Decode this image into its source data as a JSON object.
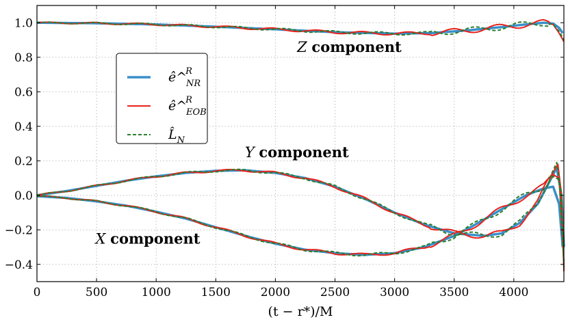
{
  "chart_data": {
    "type": "line",
    "xlabel": "(t − r*)/M",
    "ylabel": "",
    "xlim": [
      0,
      4420
    ],
    "ylim": [
      -0.5,
      1.1
    ],
    "xticks": [
      0,
      500,
      1000,
      1500,
      2000,
      2500,
      3000,
      3500,
      4000
    ],
    "xtick_labels": [
      "0",
      "500",
      "1000",
      "1500",
      "2000",
      "2500",
      "3000",
      "3500",
      "4000"
    ],
    "yticks": [
      -0.4,
      -0.2,
      0.0,
      0.2,
      0.4,
      0.6,
      0.8,
      1.0
    ],
    "ytick_labels": [
      "−0.4",
      "−0.2",
      "0.0",
      "0.2",
      "0.4",
      "0.6",
      "0.8",
      "1.0"
    ],
    "grid": true,
    "legend_position": "upper-left",
    "annotations": [
      {
        "text": "Z component",
        "x": 2620,
        "y": 0.83
      },
      {
        "text": "Y component",
        "x": 2180,
        "y": 0.22
      },
      {
        "text": "X component",
        "x": 930,
        "y": -0.28
      }
    ],
    "series": [
      {
        "name": "ê^R_NR",
        "legend_sup": "R",
        "legend_sub": "NR",
        "color": "#3a8fc9",
        "style": "solid",
        "width": 3.5,
        "components": {
          "Z": {
            "x": [
              0,
              500,
              1000,
              1500,
              2000,
              2500,
              3000,
              3300,
              3600,
              3900,
              4100,
              4250,
              4330,
              4380,
              4410
            ],
            "y": [
              1.0,
              0.997,
              0.99,
              0.977,
              0.962,
              0.945,
              0.937,
              0.94,
              0.955,
              0.975,
              0.99,
              1.0,
              0.995,
              0.97,
              0.94
            ]
          },
          "Y": {
            "x": [
              0,
              250,
              500,
              750,
              1000,
              1250,
              1500,
              1750,
              2000,
              2250,
              2500,
              2750,
              3000,
              3250,
              3500,
              3750,
              3900,
              4050,
              4200,
              4300,
              4360,
              4400,
              4420
            ],
            "y": [
              0.0,
              0.025,
              0.055,
              0.085,
              0.11,
              0.13,
              0.142,
              0.145,
              0.13,
              0.1,
              0.05,
              -0.02,
              -0.1,
              -0.17,
              -0.22,
              -0.235,
              -0.22,
              -0.16,
              -0.05,
              0.08,
              0.16,
              0.0,
              -0.3
            ]
          },
          "X": {
            "x": [
              0,
              250,
              500,
              750,
              1000,
              1250,
              1500,
              1750,
              2000,
              2250,
              2500,
              2750,
              3000,
              3250,
              3500,
              3650,
              3800,
              3950,
              4100,
              4250,
              4330,
              4380,
              4410
            ],
            "y": [
              -0.005,
              -0.015,
              -0.035,
              -0.06,
              -0.095,
              -0.135,
              -0.185,
              -0.235,
              -0.28,
              -0.315,
              -0.335,
              -0.345,
              -0.335,
              -0.3,
              -0.235,
              -0.18,
              -0.12,
              -0.06,
              0.0,
              0.04,
              0.05,
              -0.05,
              -0.3
            ]
          }
        }
      },
      {
        "name": "ê^R_EOB",
        "legend_sup": "R",
        "legend_sub": "EOB",
        "color": "#e8221c",
        "style": "solid",
        "width": 2,
        "components": {
          "Z": {
            "x": [
              0,
              500,
              1000,
              1500,
              2000,
              2500,
              3000,
              3300,
              3600,
              3900,
              4100,
              4250,
              4330,
              4380,
              4420
            ],
            "y": [
              1.0,
              0.997,
              0.99,
              0.977,
              0.962,
              0.945,
              0.937,
              0.94,
              0.955,
              0.975,
              0.99,
              1.0,
              0.99,
              0.94,
              0.89
            ]
          },
          "Y": {
            "x": [
              0,
              250,
              500,
              750,
              1000,
              1250,
              1500,
              1750,
              2000,
              2250,
              2500,
              2750,
              3000,
              3250,
              3500,
              3750,
              3900,
              4050,
              4200,
              4300,
              4370,
              4400,
              4420
            ],
            "y": [
              0.0,
              0.025,
              0.055,
              0.085,
              0.11,
              0.13,
              0.142,
              0.145,
              0.13,
              0.1,
              0.05,
              -0.02,
              -0.1,
              -0.17,
              -0.22,
              -0.235,
              -0.22,
              -0.16,
              -0.04,
              0.1,
              0.18,
              0.0,
              -0.44
            ]
          },
          "X": {
            "x": [
              0,
              250,
              500,
              750,
              1000,
              1250,
              1500,
              1750,
              2000,
              2250,
              2500,
              2750,
              3000,
              3250,
              3500,
              3650,
              3800,
              3950,
              4100,
              4250,
              4330,
              4380,
              4420
            ],
            "y": [
              -0.005,
              -0.015,
              -0.035,
              -0.06,
              -0.095,
              -0.135,
              -0.185,
              -0.235,
              -0.28,
              -0.315,
              -0.335,
              -0.345,
              -0.335,
              -0.3,
              -0.235,
              -0.18,
              -0.12,
              -0.06,
              0.0,
              0.05,
              0.12,
              0.1,
              -0.4
            ]
          }
        }
      },
      {
        "name": "L̂_N",
        "legend_sup": "",
        "legend_sub": "N",
        "color": "#2a7d2a",
        "style": "dashed",
        "width": 2,
        "components": {
          "Z": {
            "x": [
              0,
              500,
              1000,
              1500,
              2000,
              2500,
              3000,
              3300,
              3600,
              3900,
              4100,
              4250,
              4330,
              4380,
              4420
            ],
            "y": [
              1.0,
              0.997,
              0.99,
              0.977,
              0.962,
              0.945,
              0.937,
              0.94,
              0.955,
              0.975,
              0.99,
              1.0,
              0.99,
              0.95,
              0.9
            ]
          },
          "Y": {
            "x": [
              0,
              250,
              500,
              750,
              1000,
              1250,
              1500,
              1750,
              2000,
              2250,
              2500,
              2750,
              3000,
              3250,
              3500,
              3750,
              3900,
              4050,
              4200,
              4300,
              4360,
              4400,
              4420
            ],
            "y": [
              0.0,
              0.025,
              0.055,
              0.085,
              0.11,
              0.13,
              0.142,
              0.145,
              0.13,
              0.1,
              0.05,
              -0.02,
              -0.1,
              -0.17,
              -0.22,
              -0.235,
              -0.22,
              -0.16,
              -0.04,
              0.1,
              0.19,
              0.0,
              -0.42
            ]
          },
          "X": {
            "x": [
              0,
              250,
              500,
              750,
              1000,
              1250,
              1500,
              1750,
              2000,
              2250,
              2500,
              2750,
              3000,
              3250,
              3500,
              3650,
              3800,
              3950,
              4100,
              4250,
              4330,
              4380,
              4420
            ],
            "y": [
              -0.005,
              -0.015,
              -0.035,
              -0.06,
              -0.095,
              -0.135,
              -0.185,
              -0.235,
              -0.28,
              -0.315,
              -0.335,
              -0.345,
              -0.335,
              -0.3,
              -0.235,
              -0.18,
              -0.12,
              -0.06,
              0.0,
              0.05,
              0.11,
              0.09,
              -0.38
            ]
          }
        }
      }
    ]
  }
}
